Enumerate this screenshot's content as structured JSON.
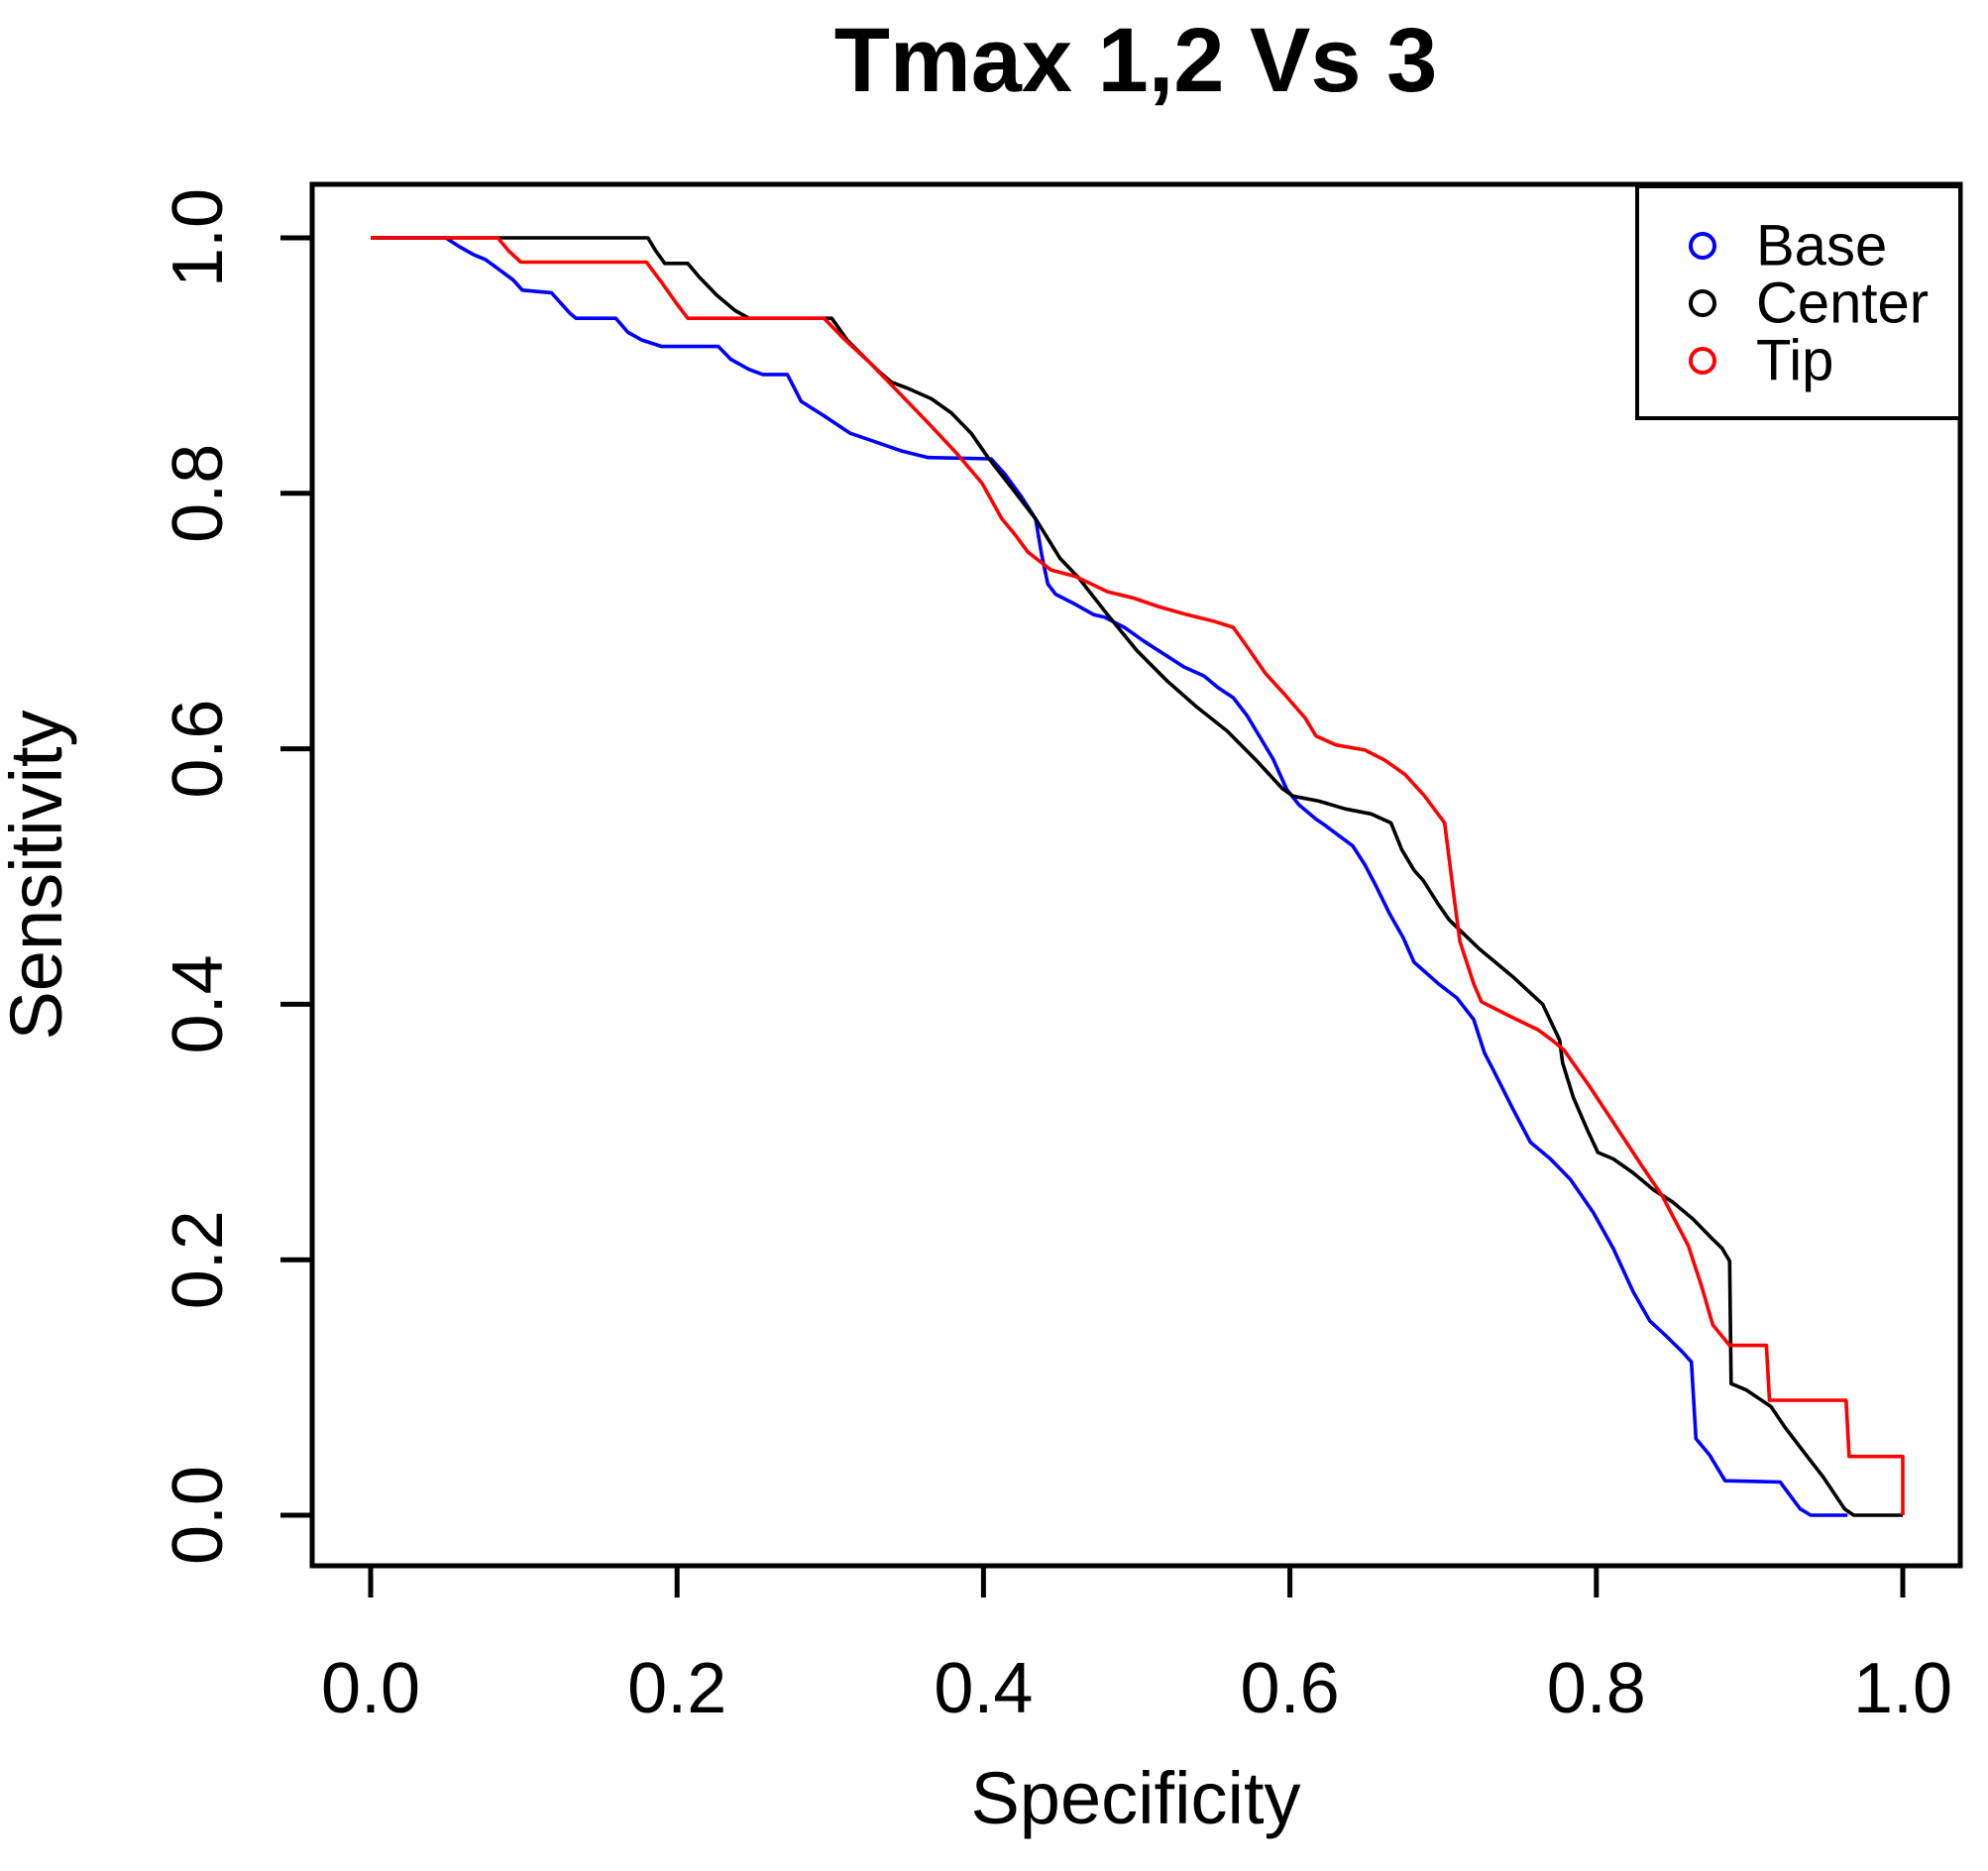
{
  "title": "Tmax 1,2 Vs 3",
  "legend": {
    "marker": "open-circle",
    "items": [
      {
        "label": "Base",
        "color": "#0000ff"
      },
      {
        "label": "Center",
        "color": "#000000"
      },
      {
        "label": "Tip",
        "color": "#ff0000"
      }
    ]
  },
  "chart_data": {
    "type": "line",
    "title": "Tmax 1,2 Vs 3",
    "xlabel": "Specificity",
    "ylabel": "Sensitivity",
    "xlim": [
      0,
      1
    ],
    "ylim": [
      0,
      1
    ],
    "grid": false,
    "legend_position": "top-right",
    "xticks": [
      {
        "label": "0.0",
        "value": 0.0
      },
      {
        "label": "0.2",
        "value": 0.2
      },
      {
        "label": "0.4",
        "value": 0.4
      },
      {
        "label": "0.6",
        "value": 0.6
      },
      {
        "label": "0.8",
        "value": 0.8
      },
      {
        "label": "1.0",
        "value": 1.0
      }
    ],
    "yticks": [
      {
        "label": "0.0",
        "value": 0.0
      },
      {
        "label": "0.2",
        "value": 0.2
      },
      {
        "label": "0.4",
        "value": 0.4
      },
      {
        "label": "0.6",
        "value": 0.6
      },
      {
        "label": "0.8",
        "value": 0.8
      },
      {
        "label": "1.0",
        "value": 1.0
      }
    ],
    "series": [
      {
        "name": "Base",
        "color": "#0000ff",
        "points": [
          [
            0,
            1
          ],
          [
            0.049,
            1
          ],
          [
            0.058,
            0.993
          ],
          [
            0.067,
            0.987
          ],
          [
            0.075,
            0.983
          ],
          [
            0.084,
            0.975
          ],
          [
            0.093,
            0.967
          ],
          [
            0.099,
            0.959
          ],
          [
            0.118,
            0.957
          ],
          [
            0.124,
            0.949
          ],
          [
            0.13,
            0.941
          ],
          [
            0.134,
            0.937
          ],
          [
            0.16,
            0.937
          ],
          [
            0.168,
            0.926
          ],
          [
            0.177,
            0.92
          ],
          [
            0.19,
            0.915
          ],
          [
            0.227,
            0.915
          ],
          [
            0.235,
            0.905
          ],
          [
            0.247,
            0.897
          ],
          [
            0.256,
            0.893
          ],
          [
            0.272,
            0.893
          ],
          [
            0.281,
            0.872
          ],
          [
            0.298,
            0.859
          ],
          [
            0.313,
            0.847
          ],
          [
            0.33,
            0.84
          ],
          [
            0.347,
            0.833
          ],
          [
            0.364,
            0.828
          ],
          [
            0.405,
            0.827
          ],
          [
            0.414,
            0.815
          ],
          [
            0.425,
            0.797
          ],
          [
            0.434,
            0.78
          ],
          [
            0.438,
            0.752
          ],
          [
            0.442,
            0.729
          ],
          [
            0.447,
            0.721
          ],
          [
            0.46,
            0.713
          ],
          [
            0.472,
            0.705
          ],
          [
            0.479,
            0.703
          ],
          [
            0.492,
            0.695
          ],
          [
            0.505,
            0.684
          ],
          [
            0.518,
            0.674
          ],
          [
            0.531,
            0.664
          ],
          [
            0.544,
            0.657
          ],
          [
            0.553,
            0.648
          ],
          [
            0.563,
            0.64
          ],
          [
            0.572,
            0.626
          ],
          [
            0.58,
            0.61
          ],
          [
            0.589,
            0.592
          ],
          [
            0.598,
            0.568
          ],
          [
            0.606,
            0.556
          ],
          [
            0.617,
            0.545
          ],
          [
            0.623,
            0.54
          ],
          [
            0.632,
            0.532
          ],
          [
            0.641,
            0.524
          ],
          [
            0.649,
            0.509
          ],
          [
            0.656,
            0.493
          ],
          [
            0.665,
            0.471
          ],
          [
            0.674,
            0.452
          ],
          [
            0.681,
            0.433
          ],
          [
            0.697,
            0.416
          ],
          [
            0.709,
            0.405
          ],
          [
            0.72,
            0.388
          ],
          [
            0.727,
            0.362
          ],
          [
            0.733,
            0.348
          ],
          [
            0.746,
            0.317
          ],
          [
            0.757,
            0.292
          ],
          [
            0.77,
            0.279
          ],
          [
            0.783,
            0.263
          ],
          [
            0.798,
            0.237
          ],
          [
            0.811,
            0.209
          ],
          [
            0.824,
            0.175
          ],
          [
            0.835,
            0.152
          ],
          [
            0.845,
            0.141
          ],
          [
            0.856,
            0.128
          ],
          [
            0.862,
            0.12
          ],
          [
            0.865,
            0.06
          ],
          [
            0.874,
            0.047
          ],
          [
            0.884,
            0.027
          ],
          [
            0.92,
            0.026
          ],
          [
            0.933,
            0.005
          ],
          [
            0.94,
            0
          ],
          [
            0.964,
            0
          ]
        ]
      },
      {
        "name": "Center",
        "color": "#000000",
        "points": [
          [
            0,
            1
          ],
          [
            0.181,
            1
          ],
          [
            0.186,
            0.99
          ],
          [
            0.192,
            0.98
          ],
          [
            0.207,
            0.98
          ],
          [
            0.214,
            0.97
          ],
          [
            0.226,
            0.955
          ],
          [
            0.238,
            0.943
          ],
          [
            0.247,
            0.937
          ],
          [
            0.301,
            0.937
          ],
          [
            0.311,
            0.92
          ],
          [
            0.321,
            0.908
          ],
          [
            0.332,
            0.895
          ],
          [
            0.34,
            0.887
          ],
          [
            0.351,
            0.882
          ],
          [
            0.366,
            0.874
          ],
          [
            0.379,
            0.863
          ],
          [
            0.392,
            0.847
          ],
          [
            0.403,
            0.828
          ],
          [
            0.418,
            0.805
          ],
          [
            0.434,
            0.78
          ],
          [
            0.45,
            0.749
          ],
          [
            0.462,
            0.734
          ],
          [
            0.481,
            0.705
          ],
          [
            0.5,
            0.677
          ],
          [
            0.52,
            0.653
          ],
          [
            0.539,
            0.633
          ],
          [
            0.559,
            0.614
          ],
          [
            0.578,
            0.591
          ],
          [
            0.595,
            0.569
          ],
          [
            0.602,
            0.563
          ],
          [
            0.619,
            0.559
          ],
          [
            0.636,
            0.553
          ],
          [
            0.653,
            0.549
          ],
          [
            0.666,
            0.542
          ],
          [
            0.673,
            0.521
          ],
          [
            0.681,
            0.505
          ],
          [
            0.687,
            0.497
          ],
          [
            0.697,
            0.478
          ],
          [
            0.704,
            0.466
          ],
          [
            0.723,
            0.444
          ],
          [
            0.746,
            0.421
          ],
          [
            0.765,
            0.4
          ],
          [
            0.776,
            0.372
          ],
          [
            0.778,
            0.354
          ],
          [
            0.785,
            0.327
          ],
          [
            0.794,
            0.302
          ],
          [
            0.801,
            0.284
          ],
          [
            0.811,
            0.279
          ],
          [
            0.824,
            0.268
          ],
          [
            0.837,
            0.255
          ],
          [
            0.85,
            0.245
          ],
          [
            0.863,
            0.232
          ],
          [
            0.876,
            0.216
          ],
          [
            0.882,
            0.209
          ],
          [
            0.887,
            0.199
          ],
          [
            0.888,
            0.103
          ],
          [
            0.898,
            0.098
          ],
          [
            0.914,
            0.085
          ],
          [
            0.923,
            0.069
          ],
          [
            0.937,
            0.047
          ],
          [
            0.948,
            0.03
          ],
          [
            0.962,
            0.005
          ],
          [
            0.968,
            0
          ],
          [
            1,
            0
          ]
        ]
      },
      {
        "name": "Tip",
        "color": "#ff0000",
        "points": [
          [
            0,
            1
          ],
          [
            0.083,
            1
          ],
          [
            0.09,
            0.99
          ],
          [
            0.098,
            0.981
          ],
          [
            0.18,
            0.981
          ],
          [
            0.19,
            0.965
          ],
          [
            0.2,
            0.948
          ],
          [
            0.207,
            0.937
          ],
          [
            0.296,
            0.937
          ],
          [
            0.308,
            0.922
          ],
          [
            0.326,
            0.902
          ],
          [
            0.343,
            0.881
          ],
          [
            0.364,
            0.855
          ],
          [
            0.382,
            0.832
          ],
          [
            0.399,
            0.808
          ],
          [
            0.412,
            0.78
          ],
          [
            0.421,
            0.767
          ],
          [
            0.429,
            0.754
          ],
          [
            0.444,
            0.74
          ],
          [
            0.46,
            0.735
          ],
          [
            0.481,
            0.723
          ],
          [
            0.498,
            0.718
          ],
          [
            0.515,
            0.711
          ],
          [
            0.533,
            0.705
          ],
          [
            0.55,
            0.7
          ],
          [
            0.563,
            0.695
          ],
          [
            0.572,
            0.68
          ],
          [
            0.584,
            0.659
          ],
          [
            0.597,
            0.642
          ],
          [
            0.61,
            0.624
          ],
          [
            0.617,
            0.61
          ],
          [
            0.63,
            0.603
          ],
          [
            0.649,
            0.599
          ],
          [
            0.662,
            0.591
          ],
          [
            0.675,
            0.58
          ],
          [
            0.688,
            0.563
          ],
          [
            0.701,
            0.542
          ],
          [
            0.707,
            0.485
          ],
          [
            0.711,
            0.449
          ],
          [
            0.72,
            0.416
          ],
          [
            0.725,
            0.402
          ],
          [
            0.743,
            0.391
          ],
          [
            0.762,
            0.38
          ],
          [
            0.771,
            0.372
          ],
          [
            0.779,
            0.364
          ],
          [
            0.796,
            0.335
          ],
          [
            0.813,
            0.304
          ],
          [
            0.83,
            0.273
          ],
          [
            0.843,
            0.25
          ],
          [
            0.86,
            0.211
          ],
          [
            0.869,
            0.178
          ],
          [
            0.876,
            0.149
          ],
          [
            0.887,
            0.133
          ],
          [
            0.911,
            0.133
          ],
          [
            0.913,
            0.09
          ],
          [
            0.963,
            0.09
          ],
          [
            0.965,
            0.046
          ],
          [
            1,
            0.046
          ],
          [
            1,
            0
          ]
        ]
      }
    ]
  }
}
